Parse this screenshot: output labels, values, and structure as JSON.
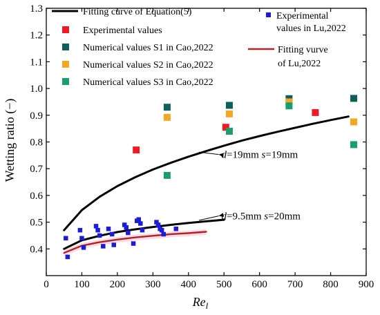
{
  "chart_data": {
    "type": "scatter",
    "title": "",
    "xlabel": "Re",
    "xlabel_sub": "l",
    "ylabel": "Wetting ratio (−)",
    "xlim": [
      0,
      900
    ],
    "ylim": [
      0.3,
      1.3
    ],
    "xticks": [
      0,
      100,
      200,
      300,
      400,
      500,
      600,
      700,
      800,
      900
    ],
    "yticks": [
      0.4,
      0.5,
      0.6,
      0.7,
      0.8,
      0.9,
      1.0,
      1.1,
      1.2,
      1.3
    ],
    "ytick_labels": [
      "0.4",
      "0.5",
      "0.6",
      "0.7",
      "0.8",
      "0.9",
      "1.0",
      "1.1",
      "1.2",
      "1.3"
    ],
    "grid": false,
    "legend_position": "top-left",
    "series": [
      {
        "name": "Fitting curve of Equation(5)",
        "kind": "line",
        "color": "#000000",
        "curves": [
          {
            "x": [
              50,
              100,
              150,
              200,
              250,
              300,
              350,
              400,
              450,
              500,
              550,
              600,
              650,
              700,
              750,
              800,
              850
            ],
            "y": [
              0.47,
              0.545,
              0.595,
              0.635,
              0.668,
              0.697,
              0.722,
              0.745,
              0.766,
              0.786,
              0.805,
              0.822,
              0.838,
              0.853,
              0.868,
              0.882,
              0.895
            ]
          },
          {
            "x": [
              50,
              100,
              150,
              200,
              250,
              300,
              350,
              400,
              450,
              500
            ],
            "y": [
              0.4,
              0.432,
              0.449,
              0.463,
              0.473,
              0.482,
              0.49,
              0.497,
              0.503,
              0.509
            ]
          }
        ]
      },
      {
        "name": "Experimental values",
        "kind": "scatter",
        "marker": "square",
        "color": "#ed1c24",
        "x": [
          253,
          505,
          757
        ],
        "y": [
          0.77,
          0.855,
          0.91
        ]
      },
      {
        "name": "Numerical values S1 in Cao,2022",
        "kind": "scatter",
        "marker": "square",
        "color": "#0f5f5c",
        "x": [
          340,
          515,
          683,
          865
        ],
        "y": [
          0.93,
          0.937,
          0.962,
          0.963
        ]
      },
      {
        "name": "Numerical values S2 in Cao,2022",
        "kind": "scatter",
        "marker": "square",
        "color": "#f5a623",
        "x": [
          340,
          515,
          683,
          865
        ],
        "y": [
          0.892,
          0.905,
          0.95,
          0.875
        ]
      },
      {
        "name": "Numerical values S3 in Cao,2022",
        "kind": "scatter",
        "marker": "square",
        "color": "#1a9e6e",
        "x": [
          340,
          515,
          683,
          865
        ],
        "y": [
          0.675,
          0.84,
          0.935,
          0.79
        ]
      },
      {
        "name": "Experimental values in Lu,2022",
        "kind": "scatter",
        "marker": "small-square",
        "color": "#1c1cd6",
        "x": [
          55,
          60,
          95,
          100,
          105,
          140,
          145,
          150,
          160,
          175,
          185,
          190,
          220,
          225,
          230,
          245,
          255,
          260,
          265,
          270,
          310,
          315,
          320,
          325,
          330,
          365
        ],
        "y": [
          0.44,
          0.37,
          0.47,
          0.44,
          0.405,
          0.485,
          0.47,
          0.45,
          0.41,
          0.475,
          0.455,
          0.415,
          0.49,
          0.48,
          0.46,
          0.42,
          0.505,
          0.51,
          0.495,
          0.47,
          0.5,
          0.49,
          0.475,
          0.47,
          0.455,
          0.475
        ]
      },
      {
        "name": "Fitting vurve of Lu,2022",
        "kind": "line",
        "color": "#b22222",
        "x": [
          50,
          100,
          150,
          200,
          250,
          300,
          350,
          400,
          450
        ],
        "y": [
          0.385,
          0.412,
          0.425,
          0.435,
          0.443,
          0.449,
          0.455,
          0.459,
          0.464
        ]
      }
    ],
    "annotations": [
      {
        "var1": "d",
        "val1": "=19mm",
        "var2": "s",
        "val2": "=19mm",
        "x": 520,
        "y": 0.748,
        "arrow_to_x": 430,
        "arrow_to_y": 0.762
      },
      {
        "var1": "d",
        "val1": "=9.5mm",
        "var2": "s",
        "val2": "=20mm",
        "x": 520,
        "y": 0.518,
        "arrow_to_x": 430,
        "arrow_to_y": 0.507
      }
    ]
  }
}
